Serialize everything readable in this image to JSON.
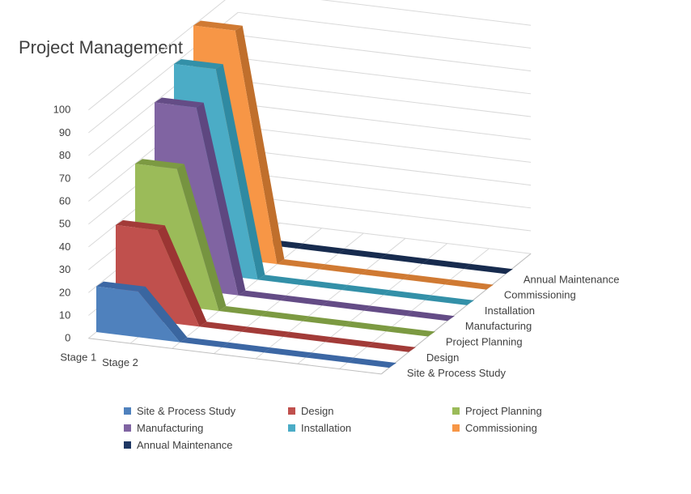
{
  "chart_data": {
    "type": "area",
    "title": "Project Management",
    "x": [
      "Stage 1",
      "Stage 2",
      "",
      "",
      "",
      "",
      "",
      ""
    ],
    "ylim": [
      0,
      100
    ],
    "yticks": [
      0,
      10,
      20,
      30,
      40,
      50,
      60,
      70,
      80,
      90,
      100
    ],
    "series": [
      {
        "name": "Site & Process Study",
        "color": "#4F81BD",
        "side": "#3A66A0",
        "top": "#3C67A4",
        "values": [
          20,
          20,
          0,
          0,
          0,
          0,
          0,
          0
        ]
      },
      {
        "name": "Design",
        "color": "#C0504D",
        "side": "#9B3533",
        "top": "#A23B38",
        "values": [
          40,
          40,
          0,
          0,
          0,
          0,
          0,
          0
        ]
      },
      {
        "name": "Project Planning",
        "color": "#9BBB59",
        "side": "#769440",
        "top": "#7C9A42",
        "values": [
          60,
          60,
          0,
          0,
          0,
          0,
          0,
          0
        ]
      },
      {
        "name": "Manufacturing",
        "color": "#8064A2",
        "side": "#5E4780",
        "top": "#644C86",
        "values": [
          80,
          80,
          0,
          0,
          0,
          0,
          0,
          0
        ]
      },
      {
        "name": "Installation",
        "color": "#4BACC6",
        "side": "#2F8AA2",
        "top": "#3390A8",
        "values": [
          90,
          90,
          0,
          0,
          0,
          0,
          0,
          0
        ]
      },
      {
        "name": "Commissioning",
        "color": "#F79646",
        "side": "#C06F2C",
        "top": "#D07A33",
        "values": [
          100,
          100,
          0,
          0,
          0,
          0,
          0,
          0
        ]
      },
      {
        "name": "Annual Maintenance",
        "color": "#1F3864",
        "side": "#152848",
        "top": "#172B4E",
        "values": [
          0,
          0,
          0,
          0,
          0,
          0,
          0,
          0
        ]
      }
    ],
    "legend": {
      "position": "bottom"
    },
    "grid": true
  }
}
